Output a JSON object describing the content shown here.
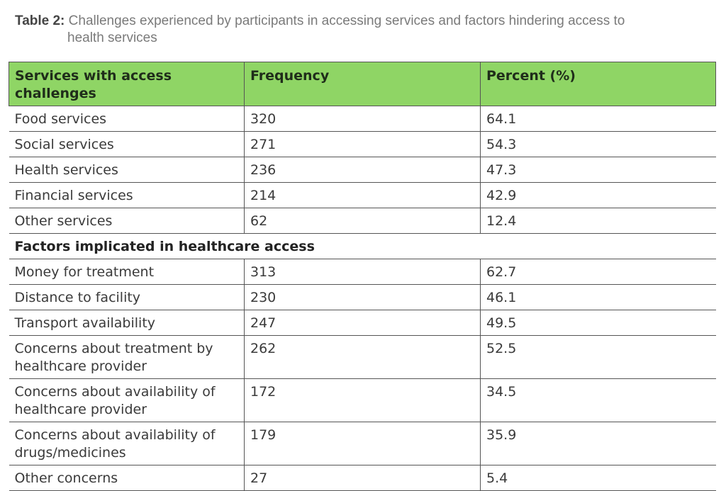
{
  "caption": {
    "label": "Table 2:",
    "text_line1": "Challenges experienced by participants in accessing services and factors hindering access to",
    "text_line2": "health services"
  },
  "header": [
    "Services with access challenges",
    "Frequency",
    "Percent (%)"
  ],
  "services": [
    {
      "name": "Food services",
      "frequency": "320",
      "percent": "64.1"
    },
    {
      "name": "Social services",
      "frequency": "271",
      "percent": "54.3"
    },
    {
      "name": "Health services",
      "frequency": "236",
      "percent": "47.3"
    },
    {
      "name": "Financial services",
      "frequency": "214",
      "percent": "42.9"
    },
    {
      "name": "Other services",
      "frequency": "62",
      "percent": "12.4"
    }
  ],
  "section_title": "Factors implicated in healthcare access",
  "factors": [
    {
      "name": "Money for treatment",
      "frequency": "313",
      "percent": "62.7"
    },
    {
      "name": "Distance to facility",
      "frequency": "230",
      "percent": "46.1"
    },
    {
      "name": "Transport availability",
      "frequency": "247",
      "percent": "49.5"
    },
    {
      "name": "Concerns about treatment by healthcare provider",
      "frequency": "262",
      "percent": "52.5"
    },
    {
      "name": "Concerns about availability of healthcare provider",
      "frequency": "172",
      "percent": "34.5"
    },
    {
      "name": "Concerns about availability of drugs/medicines",
      "frequency": "179",
      "percent": "35.9"
    },
    {
      "name": "Other concerns",
      "frequency": "27",
      "percent": "5.4"
    }
  ]
}
